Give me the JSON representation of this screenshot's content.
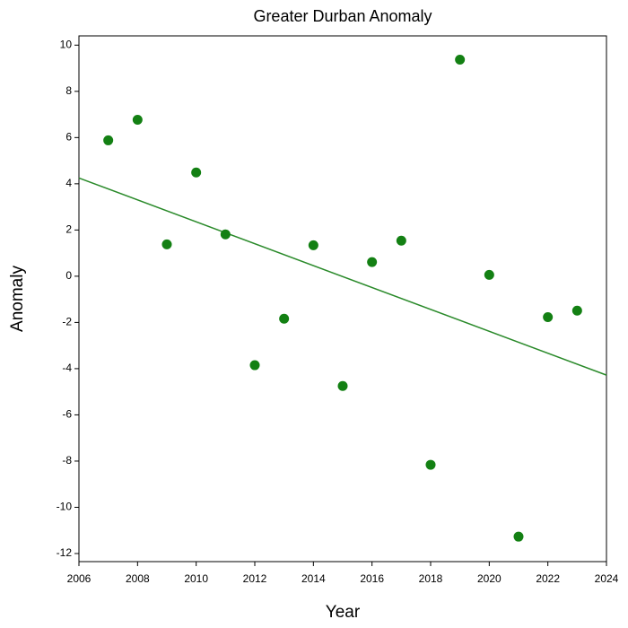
{
  "chart_data": {
    "type": "scatter",
    "title": "Greater Durban Anomaly",
    "x_label": "Year",
    "y_label": "Anomaly",
    "x": [
      2007,
      2008,
      2009,
      2010,
      2011,
      2012,
      2013,
      2014,
      2015,
      2016,
      2017,
      2018,
      2019,
      2020,
      2021,
      2022,
      2023
    ],
    "values": [
      5.88,
      6.77,
      1.38,
      4.49,
      1.81,
      -3.85,
      -1.84,
      1.34,
      -4.75,
      0.61,
      1.54,
      -8.16,
      9.37,
      0.06,
      -11.27,
      -1.77,
      -1.49
    ],
    "color": "#138013",
    "trend": {
      "x": [
        2006,
        2024
      ],
      "values": [
        4.25,
        -4.28
      ],
      "color": "#2a8a2a"
    },
    "xlim": [
      2006,
      2024
    ],
    "xticks": [
      2006,
      2008,
      2010,
      2012,
      2014,
      2016,
      2018,
      2020,
      2022,
      2024
    ],
    "ylim": [
      -12.35,
      10.4
    ],
    "yticks": [
      -12,
      -10,
      -8,
      -6,
      -4,
      -2,
      0,
      2,
      4,
      6,
      8,
      10
    ],
    "grid": false
  }
}
